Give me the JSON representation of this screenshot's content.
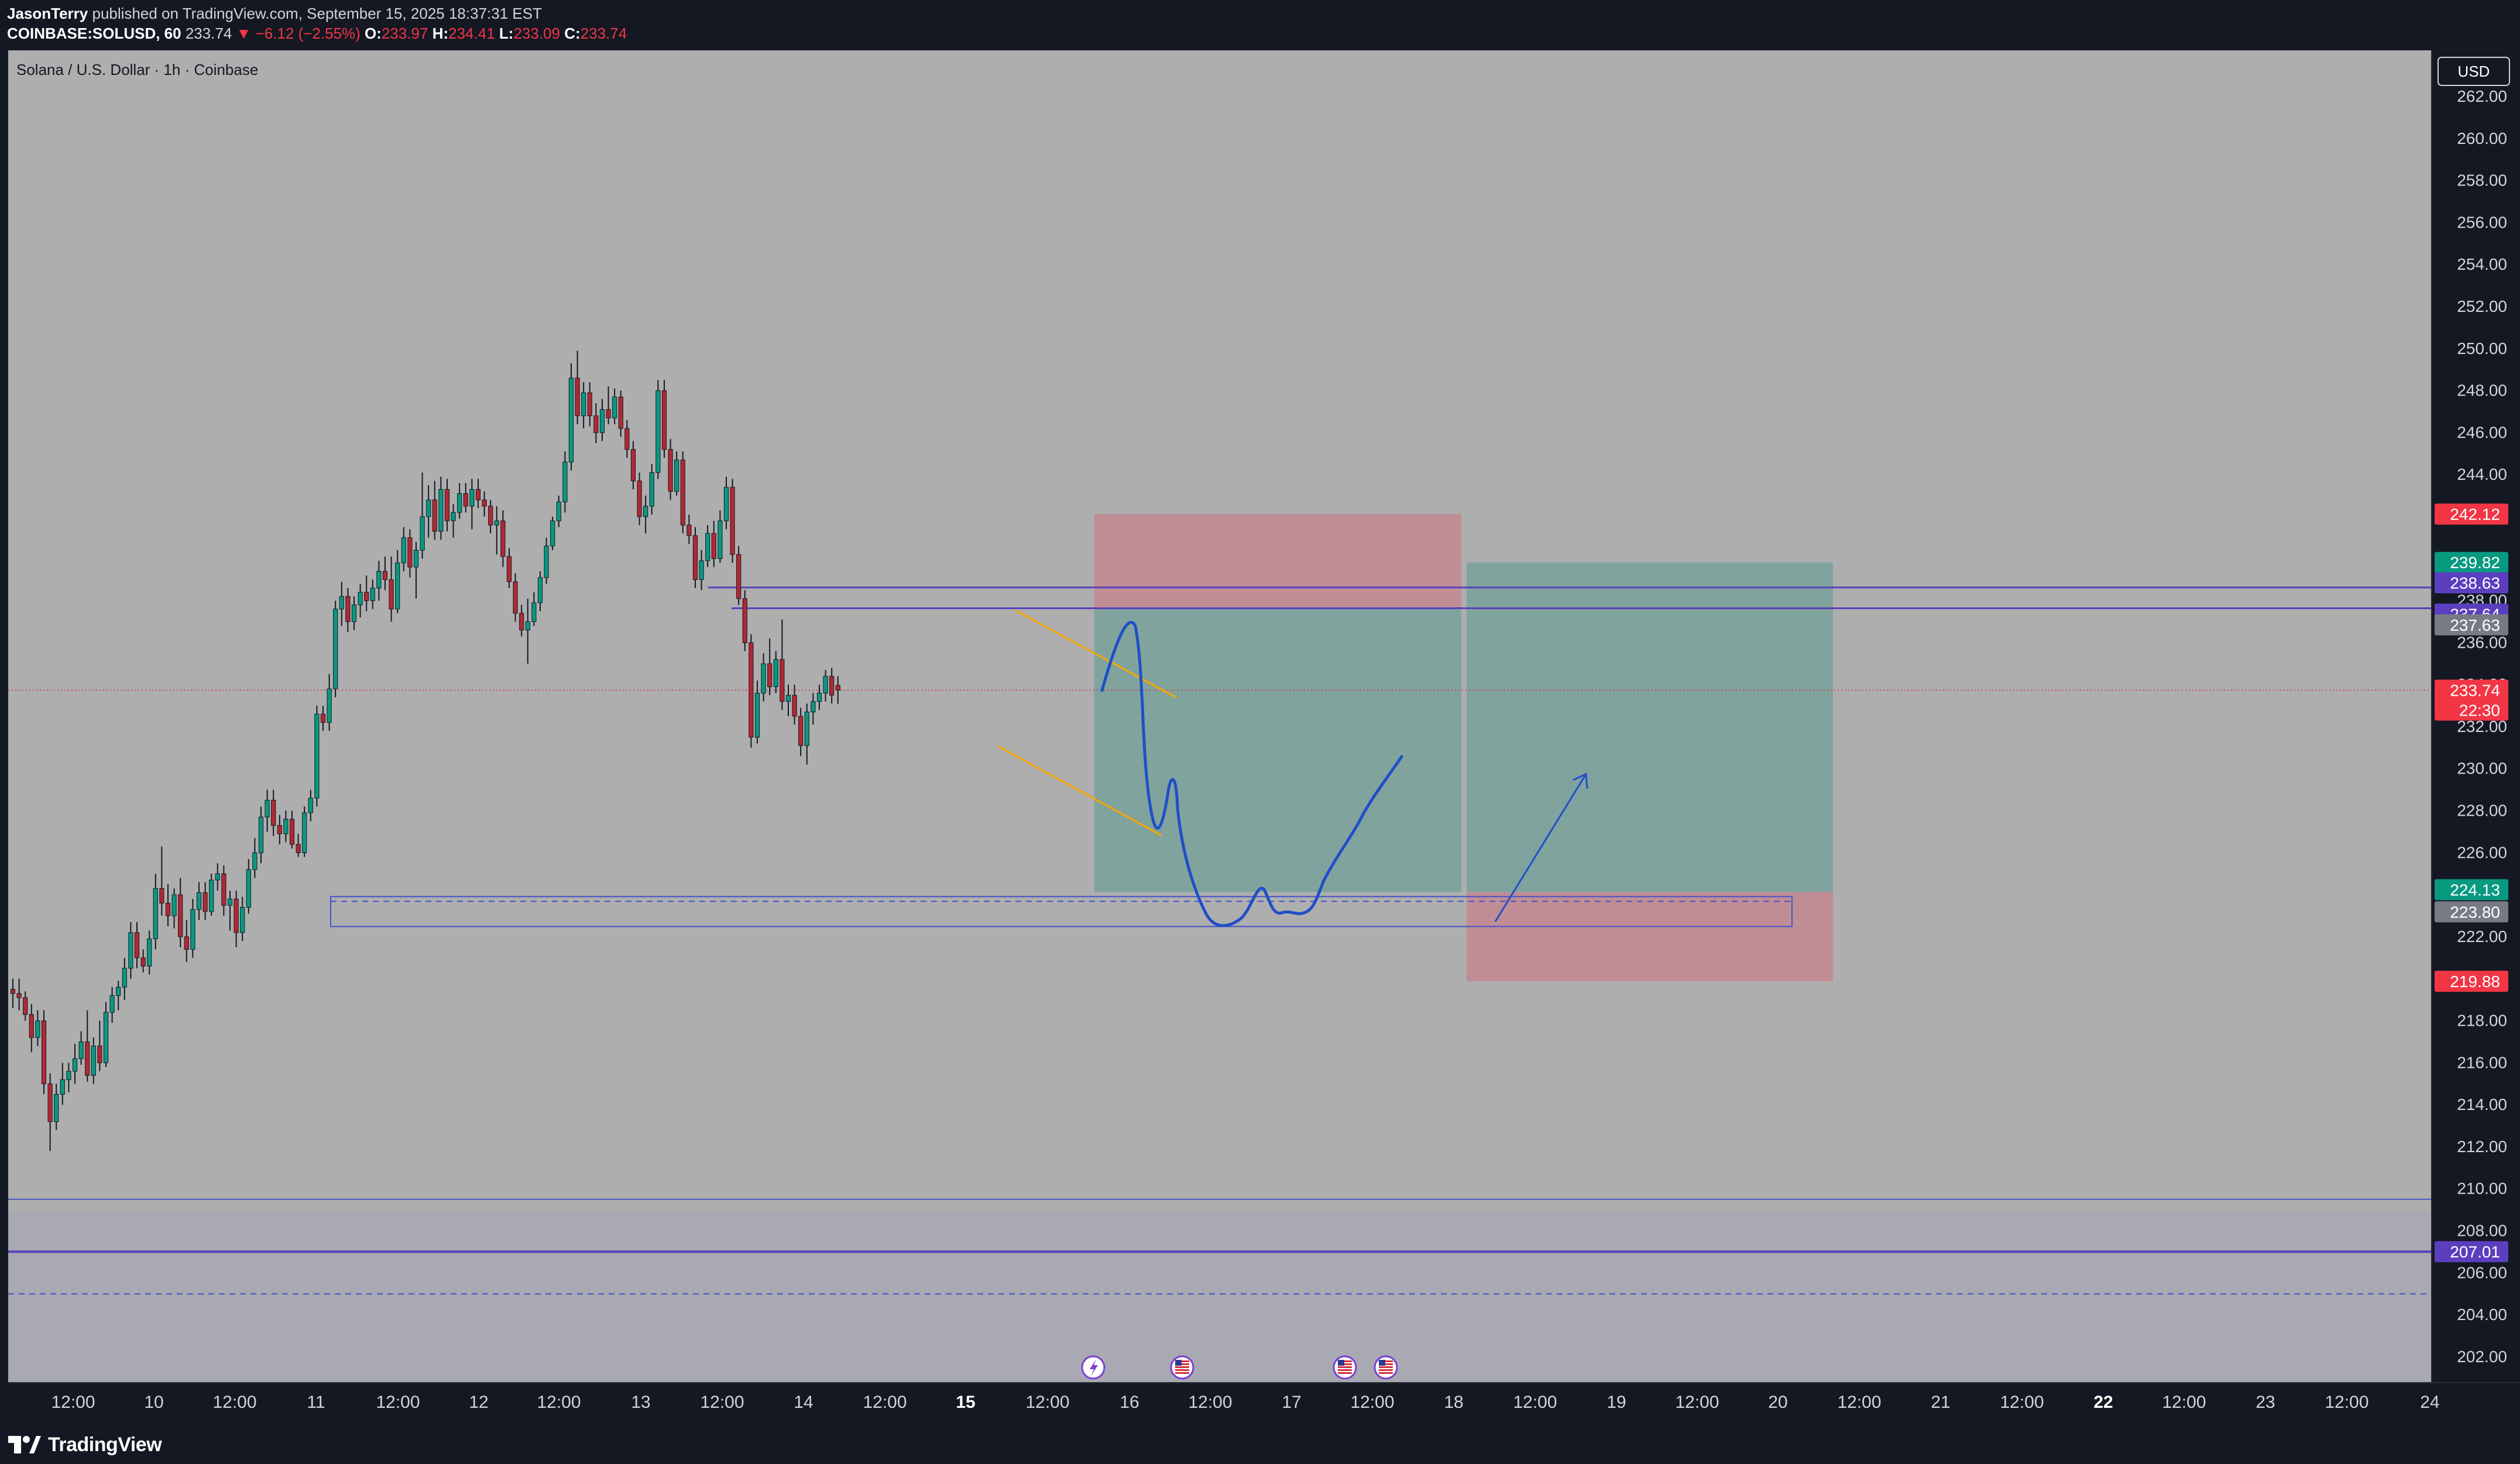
{
  "header": {
    "author": "JasonTerry",
    "published": "published on TradingView.com, September 15, 2025 18:37:31 EST",
    "symbol": "COINBASE:SOLUSD, 60",
    "last": "233.74",
    "change": "▼ −6.12 (−2.55%)",
    "o_label": "O:",
    "o_value": "233.97",
    "h_label": "H:",
    "h_value": "234.41",
    "l_label": "L:",
    "l_value": "233.09",
    "c_label": "C:",
    "c_value": "233.74"
  },
  "footer": {
    "logo_text": "TradingView"
  },
  "colors": {
    "chart_bg": "#aeaeae",
    "up": "#089981",
    "down": "#b22833",
    "profit_zone": "#7ba29c",
    "stop_zone": "#c28a92",
    "purple_line": "#5b3fbe",
    "blue_line": "#4452c9",
    "drawing": "#1f4fc8",
    "wedge": "#f7a600"
  },
  "chart_data": {
    "type": "candlestick",
    "title": "Solana / U.S. Dollar · 1h · Coinbase",
    "currency": "USD",
    "y_range": [
      200.8,
      264.2
    ],
    "y_ticks": [
      202,
      204,
      206,
      208,
      210,
      212,
      214,
      216,
      218,
      220,
      222,
      224,
      226,
      228,
      230,
      232,
      234,
      236,
      238,
      240,
      242,
      244,
      246,
      248,
      250,
      252,
      254,
      256,
      258,
      260,
      262
    ],
    "x_tick_labels": [
      "12:00",
      "10",
      "12:00",
      "11",
      "12:00",
      "12",
      "12:00",
      "13",
      "12:00",
      "14",
      "12:00",
      "15",
      "12:00",
      "16",
      "12:00",
      "17",
      "12:00",
      "18",
      "12:00",
      "19",
      "12:00",
      "20",
      "12:00",
      "21",
      "12:00",
      "22",
      "12:00",
      "23",
      "12:00",
      "24"
    ],
    "bold_x_labels": [
      "15",
      "22"
    ],
    "candles": [
      {
        "o": 219.5,
        "h": 220.0,
        "l": 218.6,
        "c": 219.3
      },
      {
        "o": 219.3,
        "h": 220.0,
        "l": 218.5,
        "c": 219.1
      },
      {
        "o": 219.1,
        "h": 219.4,
        "l": 218.0,
        "c": 218.3
      },
      {
        "o": 218.3,
        "h": 218.8,
        "l": 216.5,
        "c": 217.2
      },
      {
        "o": 217.2,
        "h": 218.5,
        "l": 216.8,
        "c": 218.0
      },
      {
        "o": 218.0,
        "h": 218.5,
        "l": 214.5,
        "c": 215.0
      },
      {
        "o": 215.0,
        "h": 215.5,
        "l": 211.8,
        "c": 213.2
      },
      {
        "o": 213.2,
        "h": 215.0,
        "l": 212.8,
        "c": 214.5
      },
      {
        "o": 214.5,
        "h": 216.0,
        "l": 214.0,
        "c": 215.2
      },
      {
        "o": 215.2,
        "h": 216.0,
        "l": 214.6,
        "c": 215.6
      },
      {
        "o": 215.6,
        "h": 216.9,
        "l": 215.0,
        "c": 216.2
      },
      {
        "o": 216.2,
        "h": 217.5,
        "l": 215.9,
        "c": 217.0
      },
      {
        "o": 217.0,
        "h": 218.5,
        "l": 215.1,
        "c": 215.4
      },
      {
        "o": 215.4,
        "h": 217.2,
        "l": 215.0,
        "c": 216.8
      },
      {
        "o": 216.8,
        "h": 218.0,
        "l": 215.6,
        "c": 216.0
      },
      {
        "o": 216.0,
        "h": 218.9,
        "l": 215.8,
        "c": 218.4
      },
      {
        "o": 218.4,
        "h": 219.6,
        "l": 217.9,
        "c": 219.2
      },
      {
        "o": 219.2,
        "h": 219.9,
        "l": 218.5,
        "c": 219.6
      },
      {
        "o": 219.6,
        "h": 221.0,
        "l": 219.0,
        "c": 220.5
      },
      {
        "o": 220.5,
        "h": 222.7,
        "l": 220.0,
        "c": 222.2
      },
      {
        "o": 222.2,
        "h": 222.7,
        "l": 220.5,
        "c": 221.0
      },
      {
        "o": 221.0,
        "h": 221.4,
        "l": 220.3,
        "c": 220.6
      },
      {
        "o": 220.6,
        "h": 222.3,
        "l": 220.2,
        "c": 221.9
      },
      {
        "o": 221.9,
        "h": 225.0,
        "l": 221.4,
        "c": 224.3
      },
      {
        "o": 224.3,
        "h": 226.3,
        "l": 223.0,
        "c": 223.6
      },
      {
        "o": 223.6,
        "h": 224.5,
        "l": 222.5,
        "c": 223.0
      },
      {
        "o": 223.0,
        "h": 224.3,
        "l": 222.4,
        "c": 224.0
      },
      {
        "o": 224.0,
        "h": 224.8,
        "l": 221.5,
        "c": 222.0
      },
      {
        "o": 222.0,
        "h": 222.8,
        "l": 220.8,
        "c": 221.4
      },
      {
        "o": 221.4,
        "h": 223.8,
        "l": 221.0,
        "c": 223.3
      },
      {
        "o": 223.3,
        "h": 224.6,
        "l": 222.8,
        "c": 224.1
      },
      {
        "o": 224.1,
        "h": 224.6,
        "l": 222.8,
        "c": 223.2
      },
      {
        "o": 223.2,
        "h": 225.0,
        "l": 223.0,
        "c": 224.7
      },
      {
        "o": 224.7,
        "h": 225.5,
        "l": 224.2,
        "c": 225.0
      },
      {
        "o": 225.0,
        "h": 225.4,
        "l": 223.0,
        "c": 223.5
      },
      {
        "o": 223.5,
        "h": 224.2,
        "l": 222.3,
        "c": 223.8
      },
      {
        "o": 223.8,
        "h": 224.2,
        "l": 221.5,
        "c": 222.2
      },
      {
        "o": 222.2,
        "h": 223.9,
        "l": 221.8,
        "c": 223.4
      },
      {
        "o": 223.4,
        "h": 225.7,
        "l": 223.1,
        "c": 225.2
      },
      {
        "o": 225.2,
        "h": 226.7,
        "l": 224.8,
        "c": 226.0
      },
      {
        "o": 226.0,
        "h": 228.2,
        "l": 225.5,
        "c": 227.7
      },
      {
        "o": 227.7,
        "h": 229.0,
        "l": 227.0,
        "c": 228.5
      },
      {
        "o": 228.5,
        "h": 229.0,
        "l": 226.8,
        "c": 227.3
      },
      {
        "o": 227.3,
        "h": 227.8,
        "l": 226.4,
        "c": 226.9
      },
      {
        "o": 226.9,
        "h": 228.0,
        "l": 226.5,
        "c": 227.6
      },
      {
        "o": 227.6,
        "h": 228.0,
        "l": 226.2,
        "c": 226.4
      },
      {
        "o": 226.4,
        "h": 226.9,
        "l": 225.8,
        "c": 226.0
      },
      {
        "o": 226.0,
        "h": 228.2,
        "l": 225.8,
        "c": 227.9
      },
      {
        "o": 227.9,
        "h": 229.0,
        "l": 227.5,
        "c": 228.6
      },
      {
        "o": 228.6,
        "h": 233.0,
        "l": 228.2,
        "c": 232.6
      },
      {
        "o": 232.6,
        "h": 233.0,
        "l": 231.8,
        "c": 232.2
      },
      {
        "o": 232.2,
        "h": 234.5,
        "l": 231.8,
        "c": 233.8
      },
      {
        "o": 233.8,
        "h": 238.0,
        "l": 233.4,
        "c": 237.6
      },
      {
        "o": 237.6,
        "h": 238.9,
        "l": 236.8,
        "c": 238.2
      },
      {
        "o": 238.2,
        "h": 238.6,
        "l": 236.5,
        "c": 237.0
      },
      {
        "o": 237.0,
        "h": 238.2,
        "l": 236.6,
        "c": 237.8
      },
      {
        "o": 237.8,
        "h": 238.8,
        "l": 237.2,
        "c": 238.4
      },
      {
        "o": 238.4,
        "h": 239.2,
        "l": 237.5,
        "c": 238.0
      },
      {
        "o": 238.0,
        "h": 239.0,
        "l": 237.6,
        "c": 238.6
      },
      {
        "o": 238.6,
        "h": 239.9,
        "l": 238.0,
        "c": 239.4
      },
      {
        "o": 239.4,
        "h": 240.1,
        "l": 238.5,
        "c": 239.0
      },
      {
        "o": 239.0,
        "h": 240.1,
        "l": 237.0,
        "c": 237.6
      },
      {
        "o": 237.6,
        "h": 240.4,
        "l": 237.4,
        "c": 239.8
      },
      {
        "o": 239.8,
        "h": 241.5,
        "l": 239.4,
        "c": 241.0
      },
      {
        "o": 241.0,
        "h": 241.4,
        "l": 239.1,
        "c": 239.6
      },
      {
        "o": 239.6,
        "h": 240.8,
        "l": 238.1,
        "c": 240.4
      },
      {
        "o": 240.4,
        "h": 244.1,
        "l": 240.0,
        "c": 242.0
      },
      {
        "o": 242.0,
        "h": 243.5,
        "l": 241.0,
        "c": 242.8
      },
      {
        "o": 242.8,
        "h": 243.7,
        "l": 240.9,
        "c": 241.3
      },
      {
        "o": 241.3,
        "h": 243.9,
        "l": 240.9,
        "c": 243.3
      },
      {
        "o": 243.3,
        "h": 243.8,
        "l": 241.3,
        "c": 241.8
      },
      {
        "o": 241.8,
        "h": 242.6,
        "l": 241.0,
        "c": 242.2
      },
      {
        "o": 242.2,
        "h": 243.6,
        "l": 241.9,
        "c": 243.1
      },
      {
        "o": 243.1,
        "h": 243.6,
        "l": 242.2,
        "c": 242.5
      },
      {
        "o": 242.5,
        "h": 243.8,
        "l": 241.4,
        "c": 243.3
      },
      {
        "o": 243.3,
        "h": 243.8,
        "l": 242.4,
        "c": 242.8
      },
      {
        "o": 242.8,
        "h": 243.2,
        "l": 242.0,
        "c": 242.5
      },
      {
        "o": 242.5,
        "h": 242.8,
        "l": 241.2,
        "c": 241.6
      },
      {
        "o": 241.6,
        "h": 242.5,
        "l": 240.2,
        "c": 241.8
      },
      {
        "o": 241.8,
        "h": 242.3,
        "l": 239.6,
        "c": 240.1
      },
      {
        "o": 240.1,
        "h": 240.5,
        "l": 238.6,
        "c": 238.9
      },
      {
        "o": 238.9,
        "h": 239.3,
        "l": 237.0,
        "c": 237.4
      },
      {
        "o": 237.4,
        "h": 237.8,
        "l": 236.3,
        "c": 236.6
      },
      {
        "o": 236.6,
        "h": 238.1,
        "l": 235.0,
        "c": 237.0
      },
      {
        "o": 237.0,
        "h": 238.4,
        "l": 236.8,
        "c": 237.9
      },
      {
        "o": 237.9,
        "h": 239.4,
        "l": 237.5,
        "c": 239.1
      },
      {
        "o": 239.1,
        "h": 241.0,
        "l": 238.8,
        "c": 240.6
      },
      {
        "o": 240.6,
        "h": 242.0,
        "l": 240.4,
        "c": 241.8
      },
      {
        "o": 241.8,
        "h": 243.0,
        "l": 241.5,
        "c": 242.7
      },
      {
        "o": 242.7,
        "h": 245.1,
        "l": 242.2,
        "c": 244.6
      },
      {
        "o": 244.6,
        "h": 249.3,
        "l": 244.2,
        "c": 248.6
      },
      {
        "o": 248.6,
        "h": 249.9,
        "l": 246.4,
        "c": 246.8
      },
      {
        "o": 246.8,
        "h": 248.4,
        "l": 246.2,
        "c": 247.9
      },
      {
        "o": 247.9,
        "h": 248.4,
        "l": 246.3,
        "c": 246.8
      },
      {
        "o": 246.8,
        "h": 247.4,
        "l": 245.5,
        "c": 246.0
      },
      {
        "o": 246.0,
        "h": 247.6,
        "l": 245.6,
        "c": 247.1
      },
      {
        "o": 247.1,
        "h": 248.2,
        "l": 246.4,
        "c": 246.7
      },
      {
        "o": 246.7,
        "h": 248.1,
        "l": 246.4,
        "c": 247.7
      },
      {
        "o": 247.7,
        "h": 248.0,
        "l": 245.8,
        "c": 246.2
      },
      {
        "o": 246.2,
        "h": 246.6,
        "l": 244.8,
        "c": 245.2
      },
      {
        "o": 245.2,
        "h": 245.6,
        "l": 243.3,
        "c": 243.7
      },
      {
        "o": 243.7,
        "h": 244.1,
        "l": 241.6,
        "c": 242.0
      },
      {
        "o": 242.0,
        "h": 243.0,
        "l": 241.2,
        "c": 242.5
      },
      {
        "o": 242.5,
        "h": 244.5,
        "l": 242.1,
        "c": 244.1
      },
      {
        "o": 244.1,
        "h": 248.5,
        "l": 243.8,
        "c": 248.0
      },
      {
        "o": 248.0,
        "h": 248.5,
        "l": 244.8,
        "c": 245.2
      },
      {
        "o": 245.2,
        "h": 245.7,
        "l": 242.8,
        "c": 243.2
      },
      {
        "o": 243.2,
        "h": 245.1,
        "l": 243.0,
        "c": 244.7
      },
      {
        "o": 244.7,
        "h": 245.1,
        "l": 241.2,
        "c": 241.6
      },
      {
        "o": 241.6,
        "h": 242.1,
        "l": 240.7,
        "c": 241.1
      },
      {
        "o": 241.1,
        "h": 241.5,
        "l": 238.6,
        "c": 239.0
      },
      {
        "o": 239.0,
        "h": 240.4,
        "l": 238.5,
        "c": 239.9
      },
      {
        "o": 239.9,
        "h": 241.6,
        "l": 239.6,
        "c": 241.2
      },
      {
        "o": 241.2,
        "h": 241.8,
        "l": 239.6,
        "c": 240.0
      },
      {
        "o": 240.0,
        "h": 242.3,
        "l": 239.8,
        "c": 241.8
      },
      {
        "o": 241.8,
        "h": 243.9,
        "l": 241.4,
        "c": 243.4
      },
      {
        "o": 243.4,
        "h": 243.8,
        "l": 239.8,
        "c": 240.2
      },
      {
        "o": 240.2,
        "h": 240.6,
        "l": 237.8,
        "c": 238.1
      },
      {
        "o": 238.1,
        "h": 238.5,
        "l": 235.6,
        "c": 236.0
      },
      {
        "o": 236.0,
        "h": 236.4,
        "l": 231.0,
        "c": 231.5
      },
      {
        "o": 231.5,
        "h": 234.2,
        "l": 231.2,
        "c": 233.6
      },
      {
        "o": 233.6,
        "h": 235.5,
        "l": 233.2,
        "c": 235.0
      },
      {
        "o": 235.0,
        "h": 236.2,
        "l": 233.5,
        "c": 233.9
      },
      {
        "o": 233.9,
        "h": 235.6,
        "l": 233.6,
        "c": 235.2
      },
      {
        "o": 235.2,
        "h": 237.1,
        "l": 232.8,
        "c": 233.2
      },
      {
        "o": 233.2,
        "h": 234.0,
        "l": 232.5,
        "c": 233.5
      },
      {
        "o": 233.5,
        "h": 234.0,
        "l": 232.1,
        "c": 232.5
      },
      {
        "o": 232.5,
        "h": 232.9,
        "l": 230.6,
        "c": 231.1
      },
      {
        "o": 231.1,
        "h": 233.1,
        "l": 230.2,
        "c": 232.7
      },
      {
        "o": 232.7,
        "h": 233.6,
        "l": 232.1,
        "c": 233.2
      },
      {
        "o": 233.2,
        "h": 234.0,
        "l": 232.8,
        "c": 233.6
      },
      {
        "o": 233.6,
        "h": 234.7,
        "l": 233.2,
        "c": 234.4
      },
      {
        "o": 234.4,
        "h": 234.8,
        "l": 233.1,
        "c": 233.5
      },
      {
        "o": 233.97,
        "h": 234.41,
        "l": 233.09,
        "c": 233.74
      }
    ],
    "price_labels": [
      {
        "value": 242.12,
        "text": "242.12",
        "color": "#f23645"
      },
      {
        "value": 239.82,
        "text": "239.82",
        "color": "#089981"
      },
      {
        "value": 238.63,
        "text": "238.63",
        "color": "#5b3fbe"
      },
      {
        "value": 237.64,
        "text": "237.64",
        "color": "#5b3fbe"
      },
      {
        "value": 237.63,
        "text": "237.63",
        "color": "#787b86"
      },
      {
        "value": 233.74,
        "text": "233.74",
        "sub": "22:30",
        "color": "#f23645"
      },
      {
        "value": 224.13,
        "text": "224.13",
        "color": "#089981"
      },
      {
        "value": 223.8,
        "text": "223.80",
        "color": "#787b86"
      },
      {
        "value": 219.88,
        "text": "219.88",
        "color": "#f23645"
      },
      {
        "value": 207.01,
        "text": "207.01",
        "color": "#5b3fbe"
      }
    ],
    "levels": {
      "horizontal_1": 238.63,
      "horizontal_2": 237.64,
      "last_price": 233.74,
      "support_box": [
        222.6,
        223.8
      ],
      "support_dashed": 223.8,
      "lower_line": 209.5,
      "lower_purple": 207.01,
      "lower_dashed": 205.0
    },
    "positions": [
      {
        "kind": "short",
        "entry": 237.63,
        "stop": 242.12,
        "target": 224.13
      },
      {
        "kind": "long",
        "entry": 224.13,
        "stop": 219.88,
        "target": 239.82
      }
    ]
  }
}
